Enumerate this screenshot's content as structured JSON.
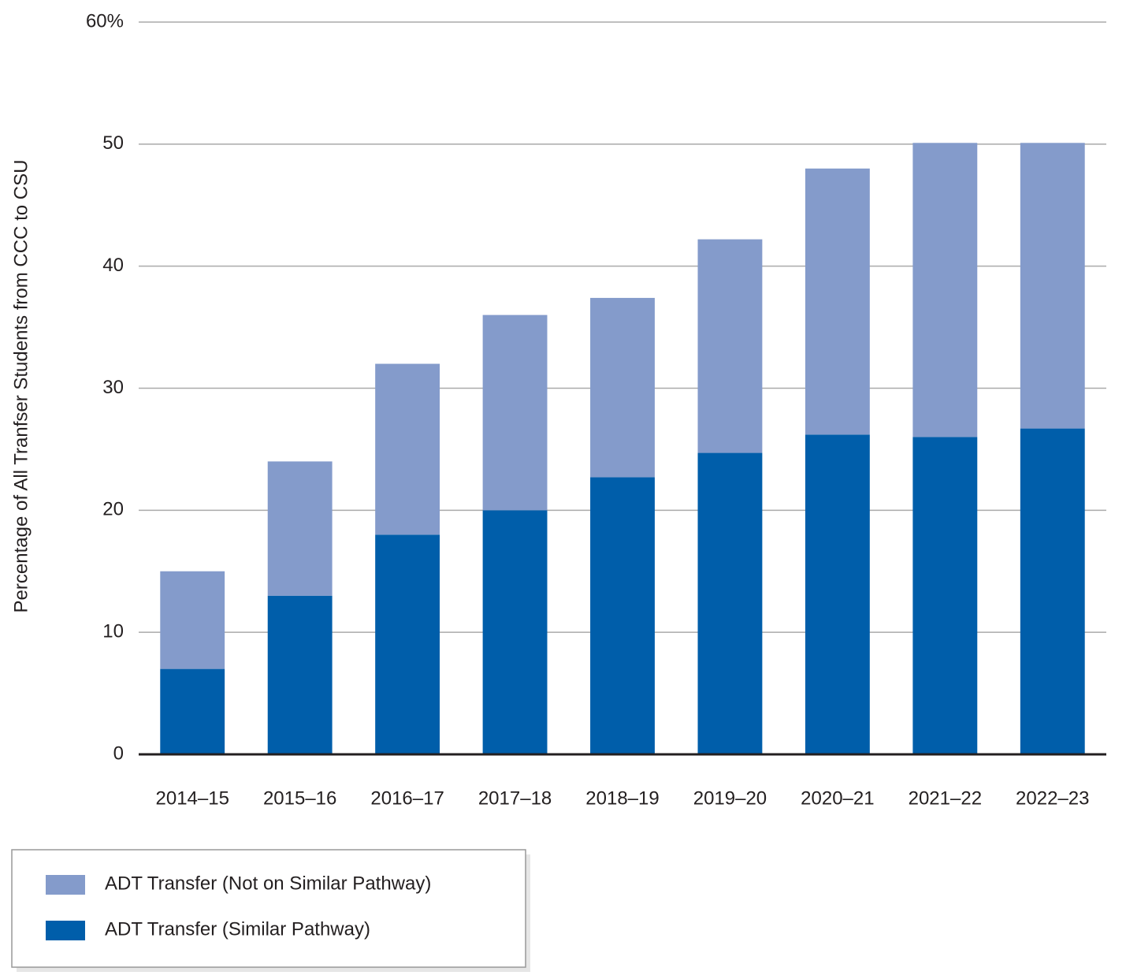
{
  "chart_data": {
    "type": "stacked-bar",
    "y_label": "Percentage of All Tranfser Students from CCC to CSU",
    "categories": [
      "2014–15",
      "2015–16",
      "2016–17",
      "2017–18",
      "2018–19",
      "2019–20",
      "2020–21",
      "2021–22",
      "2022–23"
    ],
    "series": [
      {
        "name": "ADT Transfer (Similar Pathway)",
        "color": "#005eaa",
        "values": [
          7,
          13,
          18,
          20,
          22.7,
          24.7,
          26.2,
          26,
          26.7
        ]
      },
      {
        "name": "ADT Transfer (Not on Similar Pathway)",
        "color": "#849bcb",
        "values": [
          8,
          11,
          14,
          16,
          14.7,
          17.5,
          21.8,
          24.1,
          23.4
        ]
      }
    ],
    "ylim": [
      0,
      60
    ],
    "yticks": [
      0,
      10,
      20,
      30,
      40,
      50,
      {
        "value": 60,
        "label": "60%"
      }
    ],
    "grid": true
  }
}
